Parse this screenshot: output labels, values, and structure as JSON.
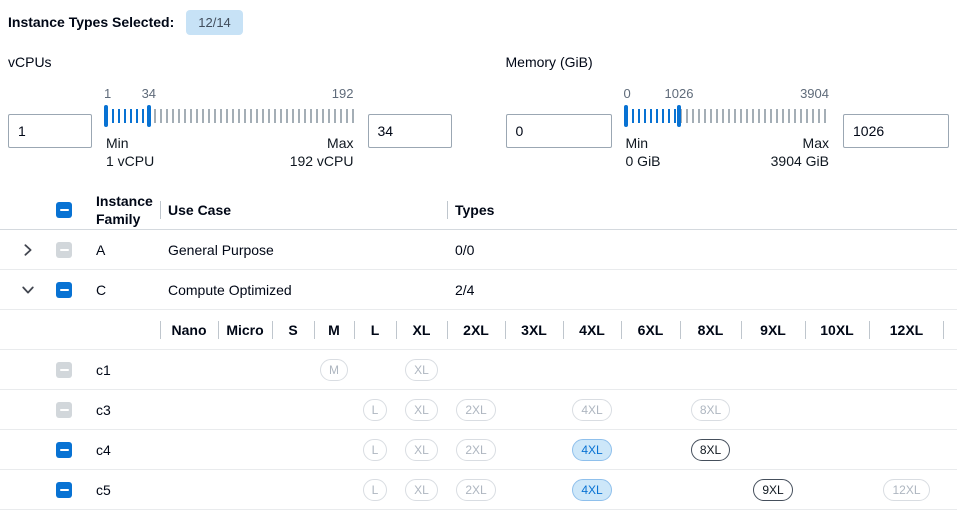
{
  "colors": {
    "accent": "#0872d3",
    "badge-bg": "#c7e2f6",
    "selected-bg": "#cde7f9",
    "selected-border": "#8fc0ec"
  },
  "header": {
    "label": "Instance Types Selected:",
    "badge": "12/14"
  },
  "filters": [
    {
      "id": "vcpus",
      "title": "vCPUs",
      "min_input": "1",
      "max_input": "34",
      "scale": {
        "start": "1",
        "mid": "34",
        "end": "192"
      },
      "min_caption": [
        "Min",
        "1 vCPU"
      ],
      "max_caption": [
        "Max",
        "192 vCPU"
      ],
      "range_min": 1,
      "range_max": 192,
      "selected_min": 1,
      "selected_max": 34,
      "fill_percent": 17.3
    },
    {
      "id": "memory",
      "title": "Memory (GiB)",
      "min_input": "0",
      "max_input": "1026",
      "scale": {
        "start": "0",
        "mid": "1026",
        "end": "3904"
      },
      "min_caption": [
        "Min",
        "0 GiB"
      ],
      "max_caption": [
        "Max",
        "3904 GiB"
      ],
      "range_min": 0,
      "range_max": 3904,
      "selected_min": 0,
      "selected_max": 1026,
      "fill_percent": 26.3
    }
  ],
  "table": {
    "columns": {
      "family": "Instance Family",
      "use_case": "Use Case",
      "types": "Types"
    },
    "sizes": [
      "Nano",
      "Micro",
      "S",
      "M",
      "L",
      "XL",
      "2XL",
      "3XL",
      "4XL",
      "6XL",
      "8XL",
      "9XL",
      "10XL",
      "12XL"
    ],
    "families": [
      {
        "name": "A",
        "use_case": "General Purpose",
        "types": "0/0",
        "expanded": false,
        "checkbox": "disabled"
      },
      {
        "name": "C",
        "use_case": "Compute Optimized",
        "types": "2/4",
        "expanded": true,
        "checkbox": "indeterminate"
      }
    ],
    "instances": [
      {
        "name": "c1",
        "checkbox": "disabled",
        "pills": [
          {
            "size": "M",
            "state": "disabled"
          },
          {
            "size": "XL",
            "state": "disabled"
          }
        ]
      },
      {
        "name": "c3",
        "checkbox": "disabled",
        "pills": [
          {
            "size": "L",
            "state": "disabled"
          },
          {
            "size": "XL",
            "state": "disabled"
          },
          {
            "size": "2XL",
            "state": "disabled"
          },
          {
            "size": "4XL",
            "state": "disabled"
          },
          {
            "size": "8XL",
            "state": "disabled"
          }
        ]
      },
      {
        "name": "c4",
        "checkbox": "indeterminate",
        "pills": [
          {
            "size": "L",
            "state": "disabled"
          },
          {
            "size": "XL",
            "state": "disabled"
          },
          {
            "size": "2XL",
            "state": "disabled"
          },
          {
            "size": "4XL",
            "state": "selected"
          },
          {
            "size": "8XL",
            "state": "available"
          }
        ]
      },
      {
        "name": "c5",
        "checkbox": "indeterminate",
        "pills": [
          {
            "size": "L",
            "state": "disabled"
          },
          {
            "size": "XL",
            "state": "disabled"
          },
          {
            "size": "2XL",
            "state": "disabled"
          },
          {
            "size": "4XL",
            "state": "selected"
          },
          {
            "size": "9XL",
            "state": "available"
          },
          {
            "size": "12XL",
            "state": "disabled"
          }
        ]
      }
    ]
  }
}
